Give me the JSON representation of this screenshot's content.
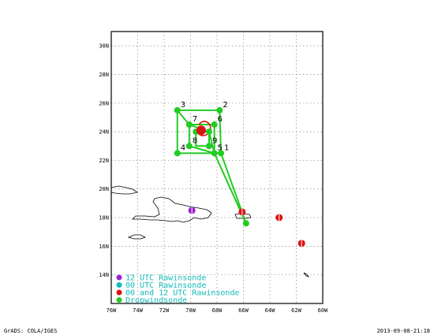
{
  "map": {
    "lon_range": [
      -76,
      -60
    ],
    "lat_range": [
      12,
      31
    ],
    "x_ticks": [
      {
        "value": -76,
        "label": "76W"
      },
      {
        "value": -74,
        "label": "74W"
      },
      {
        "value": -72,
        "label": "72W"
      },
      {
        "value": -70,
        "label": "70W"
      },
      {
        "value": -68,
        "label": "68W"
      },
      {
        "value": -66,
        "label": "66W"
      },
      {
        "value": -64,
        "label": "64W"
      },
      {
        "value": -62,
        "label": "62W"
      },
      {
        "value": -60,
        "label": "60W"
      }
    ],
    "y_ticks": [
      {
        "value": 14,
        "label": "14N"
      },
      {
        "value": 16,
        "label": "16N"
      },
      {
        "value": 18,
        "label": "18N"
      },
      {
        "value": 20,
        "label": "20N"
      },
      {
        "value": 22,
        "label": "22N"
      },
      {
        "value": 24,
        "label": "24N"
      },
      {
        "value": 26,
        "label": "26N"
      },
      {
        "value": 28,
        "label": "28N"
      },
      {
        "value": 30,
        "label": "30N"
      }
    ],
    "grid": "dotted"
  },
  "colors": {
    "drop": "#22cc22",
    "rawin_00_12": "#dd1111",
    "rawin_00": "#11bbbb",
    "rawin_12": "#9922cc",
    "coast": "#000000",
    "storm": "#dd1111"
  },
  "dropwindsondes": [
    {
      "label": "1",
      "lon": -67.7,
      "lat": 22.5
    },
    {
      "label": "2",
      "lon": -67.8,
      "lat": 25.5
    },
    {
      "label": "3",
      "lon": -71.0,
      "lat": 25.5
    },
    {
      "label": "4",
      "lon": -71.0,
      "lat": 22.5
    },
    {
      "label": "5",
      "lon": -68.2,
      "lat": 22.5
    },
    {
      "label": "6",
      "lon": -68.2,
      "lat": 24.5
    },
    {
      "label": "7",
      "lon": -70.1,
      "lat": 24.5
    },
    {
      "label": "8",
      "lon": -70.1,
      "lat": 23.0
    },
    {
      "label": "9",
      "lon": -68.6,
      "lat": 23.0
    },
    {
      "label": "",
      "lon": -68.6,
      "lat": 24.0
    },
    {
      "label": "",
      "lon": -69.6,
      "lat": 24.0
    },
    {
      "label": "",
      "lon": -65.8,
      "lat": 17.6
    }
  ],
  "flight_track": [
    [
      -71.0,
      25.5
    ],
    [
      -67.8,
      25.5
    ],
    [
      -67.7,
      22.5
    ],
    [
      -71.0,
      22.5
    ],
    [
      -71.0,
      25.5
    ],
    [
      -70.1,
      24.5
    ],
    [
      -68.2,
      24.5
    ],
    [
      -68.2,
      22.5
    ],
    [
      -70.1,
      23.0
    ],
    [
      -70.1,
      24.5
    ],
    [
      -68.6,
      24.0
    ],
    [
      -68.6,
      23.0
    ],
    [
      -69.6,
      23.0
    ],
    [
      -69.6,
      24.0
    ],
    [
      -68.6,
      24.0
    ],
    [
      -68.2,
      22.5
    ],
    [
      -65.8,
      17.6
    ],
    [
      -67.7,
      22.5
    ]
  ],
  "storm_center": {
    "lon": -69.2,
    "lat": 24.1
  },
  "rawinsondes_00_12": [
    {
      "lon": -66.1,
      "lat": 18.4
    },
    {
      "lon": -63.3,
      "lat": 18.0
    },
    {
      "lon": -61.6,
      "lat": 16.2
    }
  ],
  "rawinsondes_12": [
    {
      "lon": -69.9,
      "lat": 18.5
    }
  ],
  "legend": [
    {
      "label": "12 UTC Rawinsonde",
      "color": "#11bbbb",
      "dot": "#9922cc"
    },
    {
      "label": "00 UTC Rawinsonde",
      "color": "#11bbbb",
      "dot": "#11bbbb"
    },
    {
      "label": "00 and 12 UTC Rawinsonde",
      "color": "#11bbbb",
      "dot": "#dd1111"
    },
    {
      "label": "Dropwindsonde",
      "color": "#11bbbb",
      "dot": "#22cc22"
    }
  ],
  "footer": {
    "left": "GrADS: COLA/IGES",
    "right": "2013-09-08-21:18"
  }
}
